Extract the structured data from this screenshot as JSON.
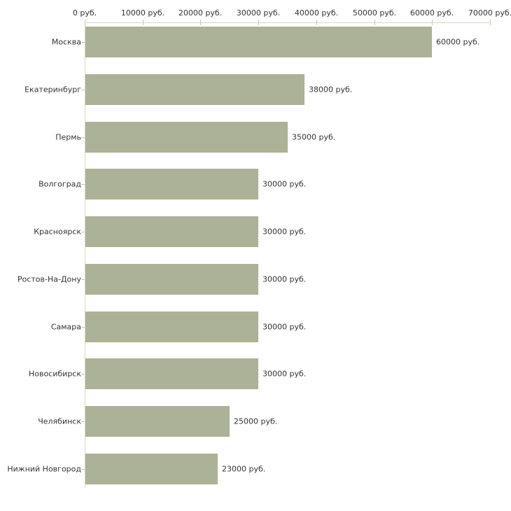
{
  "chart_data": {
    "type": "bar",
    "orientation": "horizontal",
    "title": "",
    "categories": [
      "Москва",
      "Екатеринбург",
      "Пермь",
      "Волгоград",
      "Красноярск",
      "Ростов-На-Дону",
      "Самара",
      "Новосибирск",
      "Челябинск",
      "Нижний Новгород"
    ],
    "values": [
      60000,
      38000,
      35000,
      30000,
      30000,
      30000,
      30000,
      30000,
      25000,
      23000
    ],
    "value_labels": [
      "60000 руб.",
      "38000 руб.",
      "35000 руб.",
      "30000 руб.",
      "30000 руб.",
      "30000 руб.",
      "30000 руб.",
      "30000 руб.",
      "25000 руб.",
      "23000 руб."
    ],
    "x_tick_values": [
      0,
      10000,
      20000,
      30000,
      40000,
      50000,
      60000,
      70000
    ],
    "x_tick_labels": [
      "0 руб.",
      "10000 руб.",
      "20000 руб.",
      "30000 руб.",
      "40000 руб.",
      "50000 руб.",
      "60000 руб.",
      "70000 руб."
    ],
    "xlim": [
      0,
      70000
    ],
    "xlabel": "",
    "ylabel": "",
    "grid": false,
    "legend": false,
    "colors": {
      "bar": "#abb298",
      "axis_line": "#dcd8bd",
      "tick_mark": "#cdc79d",
      "text": "#333333",
      "background": "#ffffff"
    }
  }
}
